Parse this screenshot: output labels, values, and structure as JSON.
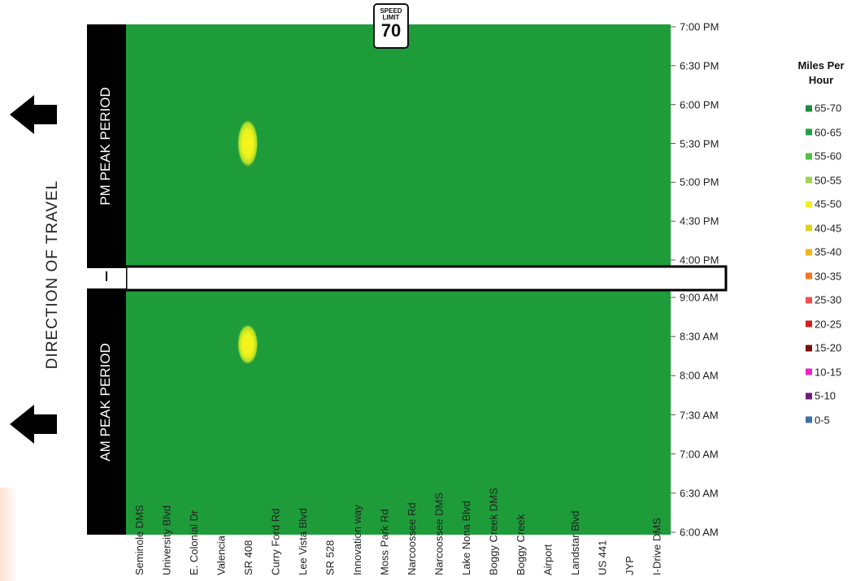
{
  "side_label": "DIRECTION OF TRAVEL",
  "speed_sign": {
    "line1": "SPEED",
    "line2": "LIMIT",
    "value": "70"
  },
  "icons": {
    "direction_arrow": "left-arrow-icon"
  },
  "colors": {
    "free_flow": "#1e9c3a",
    "slow_core": "#f5f51e",
    "slow_edge": "#a9dc2a",
    "divider_band": "#ffffff",
    "label_bar": "#000000"
  },
  "chart_data": {
    "type": "heatmap",
    "x_categories": [
      "Seminole DMS",
      "University Blvd",
      "E. Colonial Dr",
      "Valencia",
      "SR 408",
      "Curry Ford Rd",
      "Lee Vista Blvd",
      "SR 528",
      "Innovation way",
      "Moss Park Rd",
      "Narcoossee Rd",
      "Narcoossee DMS",
      "Lake Nona Blvd",
      "Boggy Creek DMS",
      "Boggy Creek",
      "Airport",
      "Landstar Blvd",
      "US 441",
      "JYP",
      "I-Drive DMS"
    ],
    "panels": [
      {
        "label": "PM PEAK PERIOD",
        "time_ticks": [
          "7:00 PM",
          "6:30 PM",
          "6:00 PM",
          "5:30 PM",
          "5:00 PM",
          "4:30 PM",
          "4:00 PM"
        ],
        "time_range_minutes": [
          960,
          1140
        ],
        "background_speed_range": "65-70",
        "slowdowns": [
          {
            "location": "SR 408",
            "start": "5:15 PM",
            "end": "5:45 PM",
            "speed_range": "45-50"
          }
        ]
      },
      {
        "label": "AM PEAK PERIOD",
        "time_ticks": [
          "9:00 AM",
          "8:30 AM",
          "8:00 AM",
          "7:30 AM",
          "7:00 AM",
          "6:30 AM",
          "6:00 AM"
        ],
        "time_range_minutes": [
          360,
          540
        ],
        "background_speed_range": "65-70",
        "slowdowns": [
          {
            "location": "SR 408",
            "start": "8:12 AM",
            "end": "8:36 AM",
            "speed_range": "45-50"
          }
        ]
      }
    ],
    "legend": {
      "title_lines": [
        "Miles Per",
        "Hour"
      ],
      "items": [
        {
          "label": "65-70",
          "color": "#1e8a3c"
        },
        {
          "label": "60-65",
          "color": "#21a04a"
        },
        {
          "label": "55-60",
          "color": "#55c043"
        },
        {
          "label": "50-55",
          "color": "#9ed453"
        },
        {
          "label": "45-50",
          "color": "#f7ef1a"
        },
        {
          "label": "40-45",
          "color": "#e0d21e"
        },
        {
          "label": "35-40",
          "color": "#f5b41a"
        },
        {
          "label": "30-35",
          "color": "#f0751e"
        },
        {
          "label": "25-30",
          "color": "#ef4e4e"
        },
        {
          "label": "20-25",
          "color": "#d21f1f"
        },
        {
          "label": "15-20",
          "color": "#7a1010"
        },
        {
          "label": "10-15",
          "color": "#ee22cc"
        },
        {
          "label": "5-10",
          "color": "#6d1f7a"
        },
        {
          "label": "0-5",
          "color": "#3d6fa8"
        }
      ]
    }
  }
}
